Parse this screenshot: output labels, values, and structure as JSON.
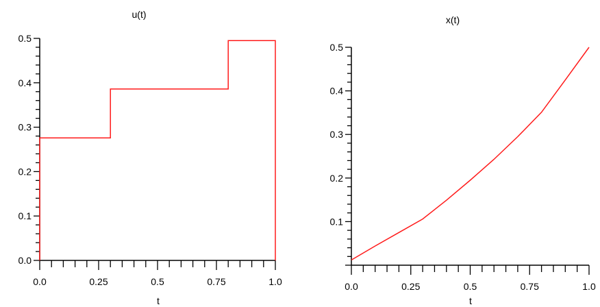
{
  "chart_data": [
    {
      "id": "u",
      "type": "line",
      "step": true,
      "title": "u(t)",
      "xlabel": "t",
      "ylabel": "",
      "xlim": [
        0,
        1
      ],
      "ylim": [
        0,
        0.5
      ],
      "x_ticks": [
        "0.0",
        "0.25",
        "0.5",
        "0.75",
        "1.0"
      ],
      "y_ticks": [
        "0.0",
        "0.1",
        "0.2",
        "0.3",
        "0.4",
        "0.5"
      ],
      "color": "#ff1a1a",
      "series": [
        {
          "x": [
            0,
            0,
            0.3,
            0.3,
            0.8,
            0.8,
            1.0,
            1.0
          ],
          "y": [
            0,
            0.276,
            0.276,
            0.386,
            0.386,
            0.495,
            0.495,
            0
          ]
        }
      ]
    },
    {
      "id": "x",
      "type": "line",
      "title": "x(t)",
      "xlabel": "t",
      "ylabel": "",
      "xlim": [
        0,
        1
      ],
      "ylim": [
        0,
        0.5
      ],
      "x_ticks": [
        "0.0",
        "0.25",
        "0.5",
        "0.75",
        "1.0"
      ],
      "y_ticks": [
        "0.1",
        "0.2",
        "0.3",
        "0.4",
        "0.5"
      ],
      "color": "#ff1a1a",
      "series": [
        {
          "x": [
            0,
            0.1,
            0.2,
            0.3,
            0.4,
            0.5,
            0.6,
            0.7,
            0.8,
            0.9,
            1.0
          ],
          "y": [
            0.012,
            0.044,
            0.075,
            0.106,
            0.149,
            0.195,
            0.243,
            0.295,
            0.351,
            0.425,
            0.5
          ]
        }
      ]
    }
  ]
}
